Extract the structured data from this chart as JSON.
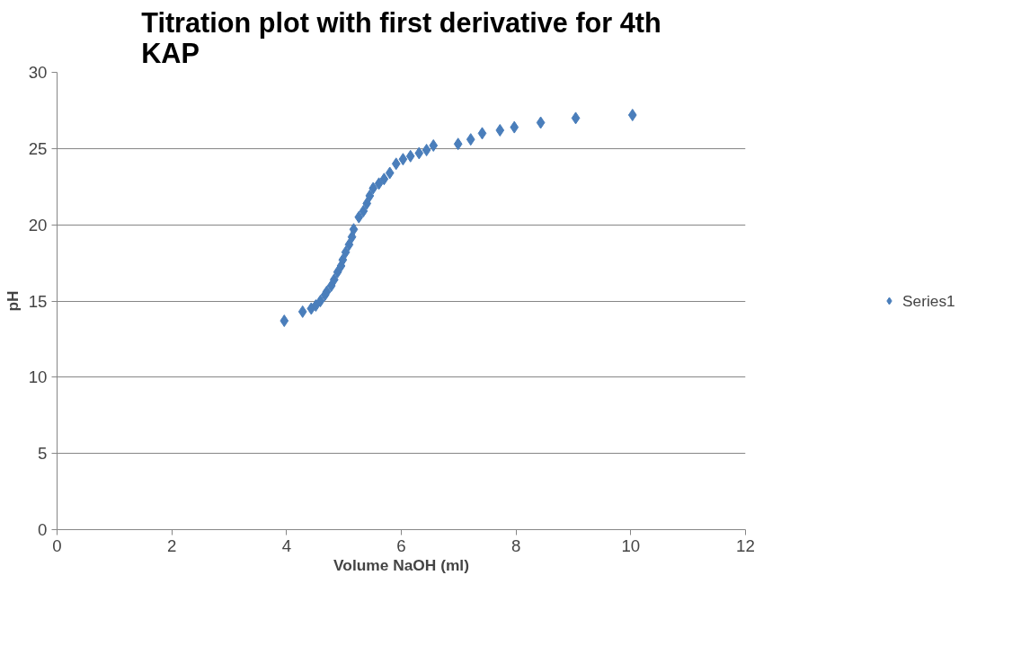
{
  "chart_data": {
    "type": "scatter",
    "title": "Titration plot with first derivative for 4th KAP",
    "xlabel": "Volume NaOH (ml)",
    "ylabel": "pH",
    "xlim": [
      0,
      12
    ],
    "xticks": [
      0,
      2,
      4,
      6,
      8,
      10,
      12
    ],
    "ylim": [
      0,
      30
    ],
    "yticks": [
      0,
      5,
      10,
      15,
      20,
      25,
      30
    ],
    "grid": "y",
    "legend": "right",
    "marker": "diamond",
    "series": [
      {
        "name": "Series1",
        "color": "#4a7ebb",
        "x": [
          3.96,
          4.28,
          4.43,
          4.51,
          4.59,
          4.67,
          4.7,
          4.78,
          4.83,
          4.89,
          4.95,
          4.98,
          5.03,
          5.09,
          5.14,
          5.17,
          5.26,
          5.34,
          5.4,
          5.45,
          5.51,
          5.61,
          5.7,
          5.8,
          5.91,
          6.03,
          6.16,
          6.31,
          6.44,
          6.56,
          6.99,
          7.21,
          7.41,
          7.72,
          7.97,
          8.43,
          9.04,
          10.03
        ],
        "values": [
          13.7,
          14.3,
          14.5,
          14.7,
          15.0,
          15.4,
          15.6,
          16.0,
          16.4,
          16.9,
          17.3,
          17.7,
          18.2,
          18.7,
          19.2,
          19.7,
          20.5,
          20.9,
          21.4,
          21.9,
          22.4,
          22.7,
          23.0,
          23.4,
          24.0,
          24.3,
          24.5,
          24.7,
          24.9,
          25.2,
          25.3,
          25.6,
          26.0,
          26.2,
          26.4,
          26.7,
          27.0,
          27.2
        ]
      }
    ]
  }
}
